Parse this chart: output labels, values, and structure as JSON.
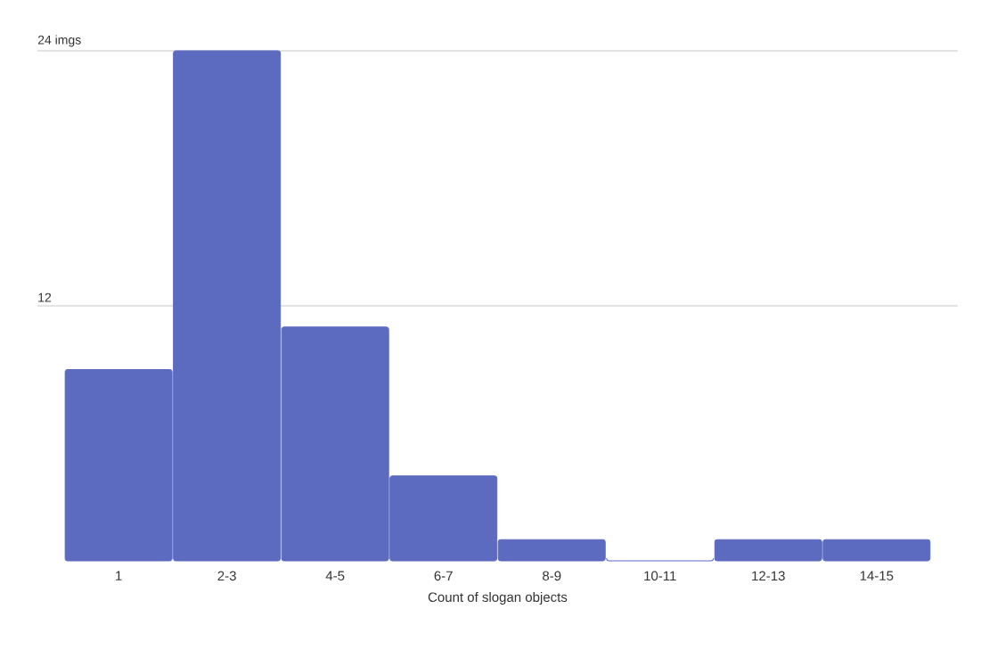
{
  "chart_data": {
    "type": "bar",
    "categories": [
      "1",
      "2-3",
      "4-5",
      "6-7",
      "8-9",
      "10-11",
      "12-13",
      "14-15"
    ],
    "values": [
      9,
      24,
      11,
      4,
      1,
      0,
      1,
      1
    ],
    "color": "#5c6bc0",
    "xlabel": "Count of slogan objects",
    "ylim": [
      0,
      24
    ],
    "yticks": [
      {
        "value": 12,
        "label": "12"
      },
      {
        "value": 24,
        "label": "24 imgs"
      }
    ],
    "grid": "y"
  }
}
